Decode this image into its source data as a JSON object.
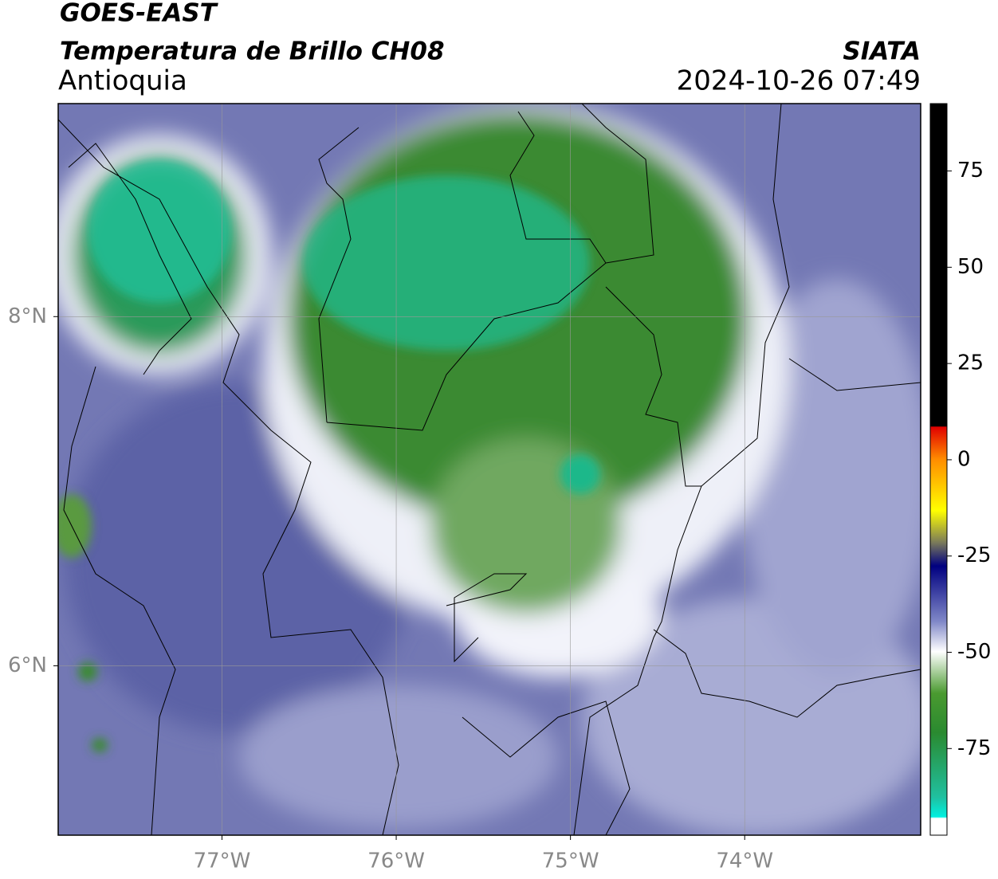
{
  "header": {
    "satellite": "GOES-EAST",
    "product": "Temperatura de Brillo CH08",
    "region": "Antioquia",
    "organization": "SIATA",
    "datetime": "2024-10-26 07:49"
  },
  "map": {
    "xlim": [
      -77.94,
      -72.99
    ],
    "ylim": [
      5.03,
      9.22
    ],
    "xticks": [
      {
        "value": -77,
        "label": "77°W"
      },
      {
        "value": -76,
        "label": "76°W"
      },
      {
        "value": -75,
        "label": "75°W"
      },
      {
        "value": -74,
        "label": "74°W"
      }
    ],
    "yticks": [
      {
        "value": 8,
        "label": "8°N"
      },
      {
        "value": 6,
        "label": "6°N"
      }
    ],
    "grid": true
  },
  "colorbar": {
    "lim": [
      -97.5,
      92.5
    ],
    "ticks": [
      75,
      50,
      25,
      0,
      -25,
      -50,
      -75
    ]
  }
}
